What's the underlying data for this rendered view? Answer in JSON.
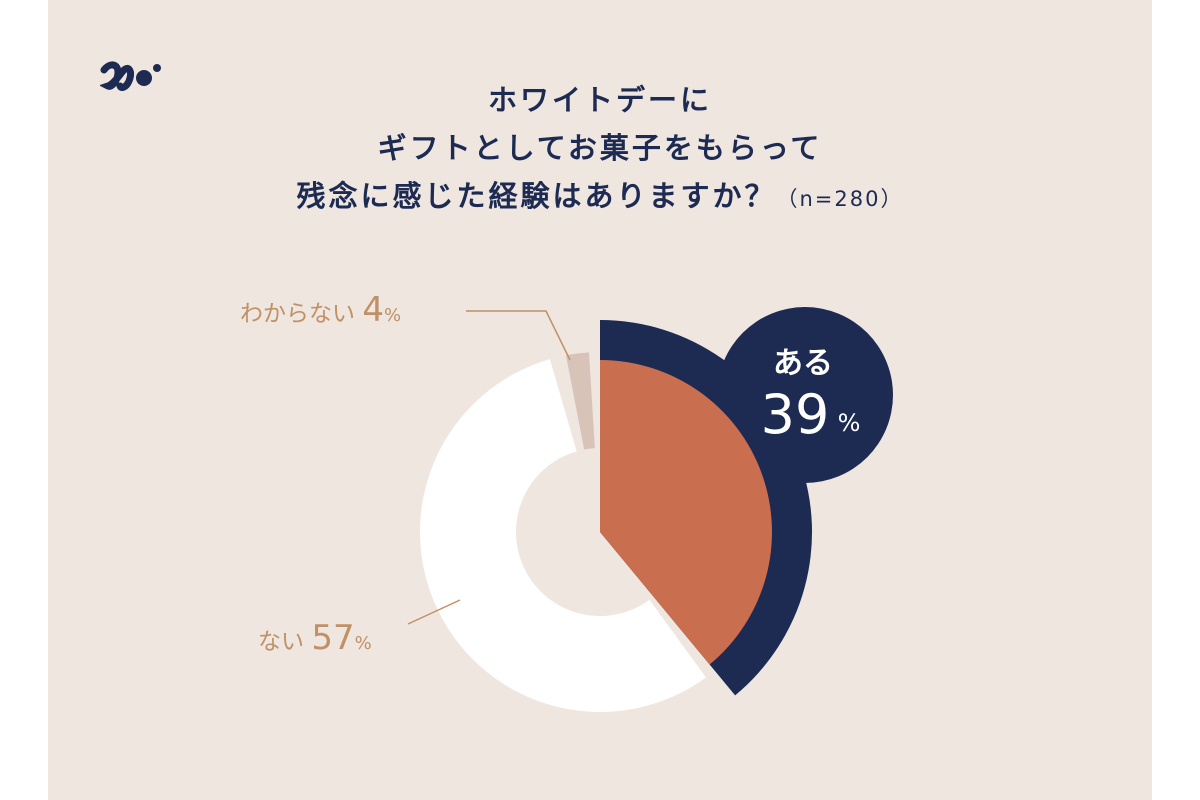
{
  "brand": {
    "logo_icon": "brand-logo-icon",
    "color": "#1d2a52"
  },
  "title": {
    "line1": "ホワイトデーに",
    "line2": "ギフトとしてお菓子をもらって",
    "line3": "残念に感じた経験はありますか？",
    "sample": "（n=280）"
  },
  "colors": {
    "background": "#efe6e0",
    "navy": "#1d2a52",
    "aru": "#c96e4e",
    "nai": "#ffffff",
    "wakaranai": "#d8c3b8",
    "label": "#c09066"
  },
  "chart_data": {
    "type": "pie",
    "title": "ホワイトデーにギフトとしてお菓子をもらって残念に感じた経験はありますか？（n=280）",
    "categories": [
      "ある",
      "ない",
      "わからない"
    ],
    "values": [
      39,
      57,
      4
    ],
    "unit": "%",
    "labels": [
      {
        "name": "ある",
        "value": "39",
        "unit": "%"
      },
      {
        "name": "ない",
        "value": "57",
        "unit": "%"
      },
      {
        "name": "わからない",
        "value": "4",
        "unit": "%"
      }
    ]
  }
}
